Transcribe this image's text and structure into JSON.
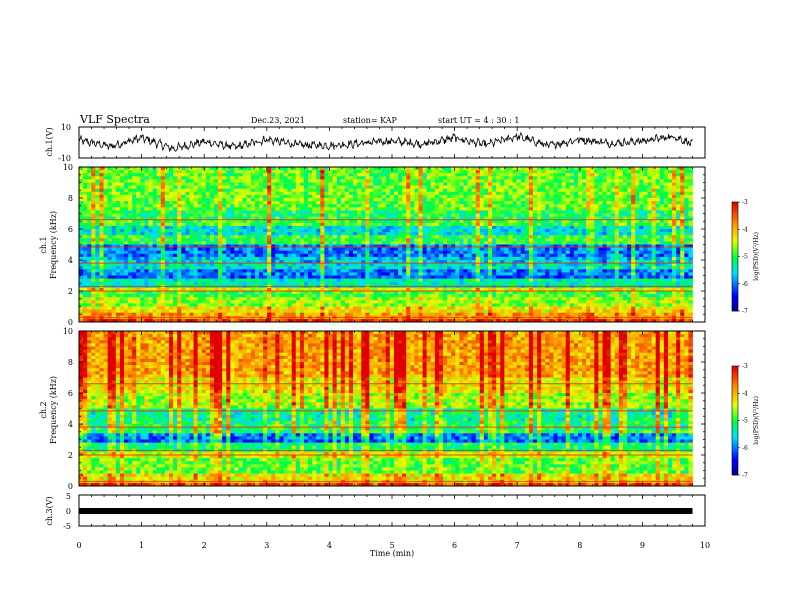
{
  "header": {
    "title": "VLF  Spectra",
    "date": "Dec.23, 2021",
    "station": "station= KAP",
    "start": "start  UT  =   4 : 30 : 1"
  },
  "chart_data": [
    {
      "type": "line",
      "panel": "ch1-waveform",
      "ylabel": "ch.1(V)",
      "ylim": [
        -10,
        10
      ],
      "ytick_labels": [
        "10",
        "-10"
      ],
      "xlim": [
        0,
        10
      ],
      "x_end": 9.8,
      "description_stroke": "#000000",
      "approx_amplitude": [
        [
          0,
          1.5
        ],
        [
          0.5,
          -2.5
        ],
        [
          1.0,
          3
        ],
        [
          1.5,
          -4
        ],
        [
          2.0,
          0.5
        ],
        [
          2.5,
          -3
        ],
        [
          3.0,
          2
        ],
        [
          3.5,
          -1.5
        ],
        [
          4.0,
          -2
        ],
        [
          4.5,
          -0.5
        ],
        [
          5.0,
          1
        ],
        [
          5.5,
          -1
        ],
        [
          6.0,
          3
        ],
        [
          6.5,
          -1.5
        ],
        [
          7.0,
          4
        ],
        [
          7.5,
          -2
        ],
        [
          8.0,
          2
        ],
        [
          8.5,
          -0.5
        ],
        [
          9.0,
          1
        ],
        [
          9.5,
          4
        ],
        [
          9.8,
          -1
        ]
      ]
    },
    {
      "type": "heatmap",
      "panel": "ch1-spectrogram",
      "ylabel": "ch.1\nFrequency  (kHz)",
      "ylim": [
        0,
        10
      ],
      "yticks": [
        0,
        2,
        4,
        6,
        8,
        10
      ],
      "xlim": [
        0,
        10
      ],
      "x_end": 9.8,
      "colorbar": {
        "label": "log(PSD)(V²/Hz)",
        "range": [
          -7,
          -3
        ],
        "ticks": [
          "-3",
          "-4",
          "-5",
          "-6",
          "-7"
        ]
      },
      "bands_khz_level": [
        [
          0,
          0.3,
          -3.4
        ],
        [
          0.3,
          0.6,
          -3.9
        ],
        [
          0.6,
          1.0,
          -4.3
        ],
        [
          1.0,
          1.6,
          -4.7
        ],
        [
          1.6,
          2.0,
          -5.0
        ],
        [
          2.0,
          2.3,
          -4.4
        ],
        [
          2.3,
          2.9,
          -5.4
        ],
        [
          2.9,
          3.4,
          -6.1
        ],
        [
          3.4,
          3.8,
          -5.6
        ],
        [
          3.8,
          4.2,
          -5.8
        ],
        [
          4.2,
          5.0,
          -6.1
        ],
        [
          5.0,
          5.6,
          -5.1
        ],
        [
          5.6,
          6.2,
          -5.6
        ],
        [
          6.2,
          6.6,
          -5.0
        ],
        [
          6.6,
          7.2,
          -5.2
        ],
        [
          7.2,
          10.0,
          -4.9
        ]
      ]
    },
    {
      "type": "heatmap",
      "panel": "ch2-spectrogram",
      "ylabel": "ch.2\nFrequency  (kHz)",
      "ylim": [
        0,
        10
      ],
      "yticks": [
        0,
        2,
        4,
        6,
        8,
        10
      ],
      "xlim": [
        0,
        10
      ],
      "x_end": 9.8,
      "colorbar": {
        "label": "log(PSD)(V²/Hz)",
        "range": [
          -7,
          -3
        ],
        "ticks": [
          "-3",
          "-4",
          "-5",
          "-6",
          "-7"
        ]
      },
      "bands_khz_level": [
        [
          0,
          0.3,
          -3.5
        ],
        [
          0.3,
          0.8,
          -4.3
        ],
        [
          0.8,
          1.8,
          -4.9
        ],
        [
          1.8,
          2.3,
          -4.5
        ],
        [
          2.3,
          2.8,
          -5.2
        ],
        [
          2.8,
          3.5,
          -6.1
        ],
        [
          3.5,
          4.2,
          -5.2
        ],
        [
          4.2,
          5.0,
          -5.4
        ],
        [
          5.0,
          6.0,
          -4.7
        ],
        [
          6.0,
          7.0,
          -4.4
        ],
        [
          7.0,
          10.0,
          -4.0
        ]
      ]
    },
    {
      "type": "line",
      "panel": "ch3-waveform",
      "ylabel": "ch.3(V)",
      "ylim": [
        -5,
        5
      ],
      "ytick_labels": [
        "5",
        "0",
        "-5"
      ],
      "xlim": [
        0,
        10
      ],
      "x_end": 9.8,
      "value": 0,
      "xlabel": "Time  (min)",
      "xtick_labels": [
        "0",
        "1",
        "2",
        "3",
        "4",
        "5",
        "6",
        "7",
        "8",
        "9",
        "10"
      ]
    }
  ]
}
